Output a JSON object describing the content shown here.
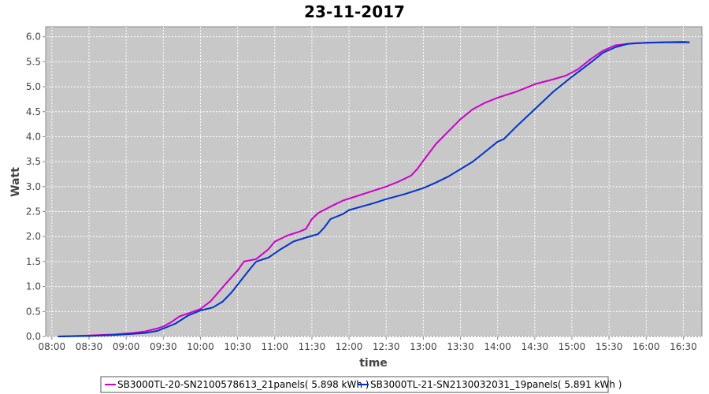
{
  "chart_data": {
    "type": "line",
    "title": "23-11-2017",
    "xlabel": "time",
    "ylabel": "Watt",
    "ylim": [
      0,
      6.2
    ],
    "xlim": [
      "07:55",
      "16:45"
    ],
    "yticks": [
      "0.0",
      "0.5",
      "1.0",
      "1.5",
      "2.0",
      "2.5",
      "3.0",
      "3.5",
      "4.0",
      "4.5",
      "5.0",
      "5.5",
      "6.0"
    ],
    "xticks": [
      "08:00",
      "08:30",
      "09:00",
      "09:30",
      "10:00",
      "10:30",
      "11:00",
      "11:30",
      "12:00",
      "12:30",
      "13:00",
      "13:30",
      "14:00",
      "14:30",
      "15:00",
      "15:30",
      "16:00",
      "16:30"
    ],
    "grid": true,
    "legend_position": "bottom",
    "colors": {
      "plot_background": "#c8c8c8",
      "grid": "#ffffff"
    },
    "series": [
      {
        "name": "SB3000TL-20-SN2100578613_21panels( 5.898 kWh )",
        "color": "#cc00cc",
        "points": [
          [
            "08:05",
            0.0
          ],
          [
            "08:30",
            0.02
          ],
          [
            "08:50",
            0.04
          ],
          [
            "09:05",
            0.07
          ],
          [
            "09:15",
            0.1
          ],
          [
            "09:25",
            0.16
          ],
          [
            "09:30",
            0.2
          ],
          [
            "09:36",
            0.28
          ],
          [
            "09:43",
            0.4
          ],
          [
            "09:50",
            0.46
          ],
          [
            "10:00",
            0.55
          ],
          [
            "10:08",
            0.7
          ],
          [
            "10:15",
            0.9
          ],
          [
            "10:22",
            1.1
          ],
          [
            "10:30",
            1.32
          ],
          [
            "10:35",
            1.5
          ],
          [
            "10:45",
            1.55
          ],
          [
            "10:55",
            1.75
          ],
          [
            "11:00",
            1.9
          ],
          [
            "11:10",
            2.02
          ],
          [
            "11:20",
            2.1
          ],
          [
            "11:25",
            2.15
          ],
          [
            "11:30",
            2.35
          ],
          [
            "11:35",
            2.47
          ],
          [
            "11:45",
            2.6
          ],
          [
            "11:55",
            2.72
          ],
          [
            "12:05",
            2.8
          ],
          [
            "12:15",
            2.88
          ],
          [
            "12:30",
            3.0
          ],
          [
            "12:40",
            3.1
          ],
          [
            "12:50",
            3.22
          ],
          [
            "12:55",
            3.35
          ],
          [
            "13:00",
            3.52
          ],
          [
            "13:10",
            3.85
          ],
          [
            "13:20",
            4.1
          ],
          [
            "13:30",
            4.35
          ],
          [
            "13:40",
            4.55
          ],
          [
            "13:50",
            4.68
          ],
          [
            "14:00",
            4.78
          ],
          [
            "14:15",
            4.9
          ],
          [
            "14:30",
            5.05
          ],
          [
            "14:45",
            5.15
          ],
          [
            "14:55",
            5.22
          ],
          [
            "15:05",
            5.35
          ],
          [
            "15:15",
            5.55
          ],
          [
            "15:25",
            5.72
          ],
          [
            "15:35",
            5.83
          ],
          [
            "15:50",
            5.87
          ],
          [
            "16:10",
            5.89
          ],
          [
            "16:30",
            5.9
          ],
          [
            "16:35",
            5.89
          ]
        ]
      },
      {
        "name": "SB3000TL-21-SN2130032031_19panels( 5.891 kWh )",
        "color": "#0033cc",
        "points": [
          [
            "08:05",
            0.0
          ],
          [
            "08:30",
            0.01
          ],
          [
            "08:50",
            0.03
          ],
          [
            "09:05",
            0.05
          ],
          [
            "09:15",
            0.07
          ],
          [
            "09:25",
            0.11
          ],
          [
            "09:30",
            0.16
          ],
          [
            "09:40",
            0.26
          ],
          [
            "09:50",
            0.42
          ],
          [
            "10:00",
            0.52
          ],
          [
            "10:10",
            0.58
          ],
          [
            "10:18",
            0.7
          ],
          [
            "10:25",
            0.88
          ],
          [
            "10:32",
            1.1
          ],
          [
            "10:40",
            1.35
          ],
          [
            "10:45",
            1.5
          ],
          [
            "10:55",
            1.58
          ],
          [
            "11:05",
            1.75
          ],
          [
            "11:15",
            1.9
          ],
          [
            "11:25",
            1.98
          ],
          [
            "11:35",
            2.05
          ],
          [
            "11:40",
            2.18
          ],
          [
            "11:45",
            2.35
          ],
          [
            "11:55",
            2.45
          ],
          [
            "12:00",
            2.53
          ],
          [
            "12:10",
            2.6
          ],
          [
            "12:20",
            2.67
          ],
          [
            "12:30",
            2.75
          ],
          [
            "12:45",
            2.85
          ],
          [
            "13:00",
            2.97
          ],
          [
            "13:10",
            3.08
          ],
          [
            "13:20",
            3.2
          ],
          [
            "13:30",
            3.35
          ],
          [
            "13:40",
            3.5
          ],
          [
            "13:50",
            3.7
          ],
          [
            "14:00",
            3.9
          ],
          [
            "14:05",
            3.95
          ],
          [
            "14:15",
            4.2
          ],
          [
            "14:30",
            4.55
          ],
          [
            "14:45",
            4.9
          ],
          [
            "15:00",
            5.2
          ],
          [
            "15:15",
            5.48
          ],
          [
            "15:25",
            5.68
          ],
          [
            "15:35",
            5.79
          ],
          [
            "15:45",
            5.86
          ],
          [
            "16:00",
            5.88
          ],
          [
            "16:15",
            5.89
          ],
          [
            "16:35",
            5.89
          ]
        ]
      }
    ]
  }
}
